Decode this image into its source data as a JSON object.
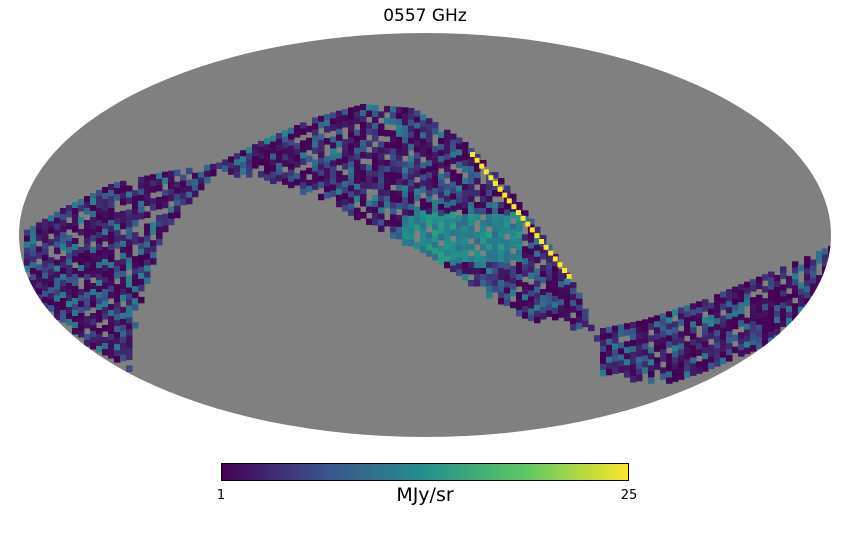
{
  "chart_data": {
    "type": "heatmap",
    "projection": "mollweide",
    "title": "0557 GHz",
    "colormap": "viridis",
    "colormap_stops": [
      "#440154",
      "#3b528b",
      "#21918c",
      "#5ec962",
      "#fde725"
    ],
    "bad_color": "#808080",
    "colorbar": {
      "min": 1,
      "max": 25,
      "min_label": "1",
      "max_label": "25",
      "unit": "MJy/sr",
      "orientation": "horizontal",
      "placement": "bottom"
    }
  }
}
